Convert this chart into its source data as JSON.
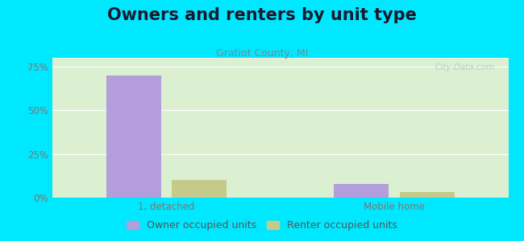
{
  "title": "Owners and renters by unit type",
  "subtitle": "Gratiot County, MI",
  "categories": [
    "1, detached",
    "Mobile home"
  ],
  "owner_values": [
    70,
    8
  ],
  "renter_values": [
    10,
    3
  ],
  "owner_color": "#b39ddb",
  "renter_color": "#c5c98a",
  "ylim": [
    0,
    80
  ],
  "yticks": [
    0,
    25,
    50,
    75
  ],
  "ytick_labels": [
    "0%",
    "25%",
    "50%",
    "75%"
  ],
  "background_color": "#00e8ff",
  "title_fontsize": 15,
  "subtitle_fontsize": 9,
  "label_fontsize": 8.5,
  "legend_fontsize": 9,
  "bar_width": 0.12,
  "watermark": "City-Data.com"
}
